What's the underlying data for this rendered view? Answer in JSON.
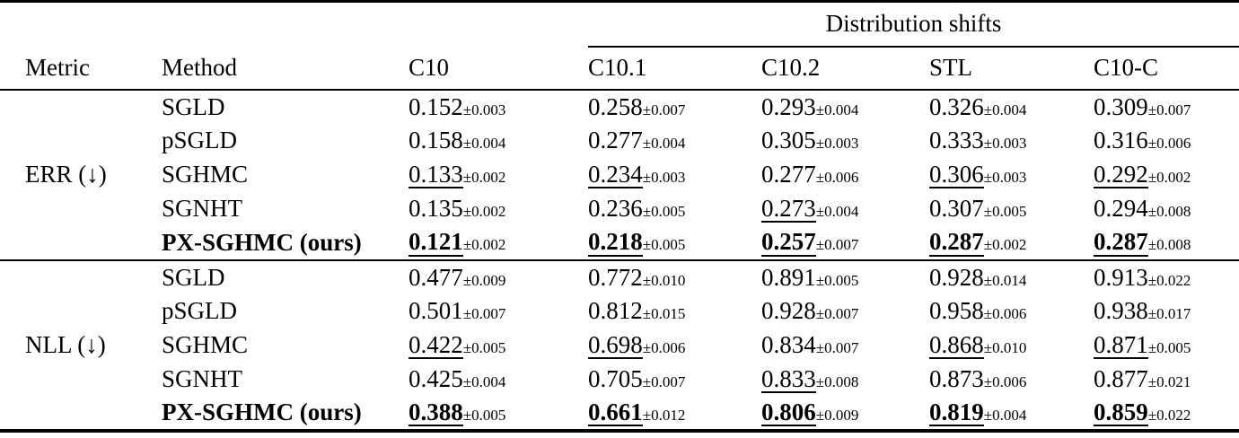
{
  "page": {
    "background_color": "#ffffff",
    "text_color": "#000000",
    "rule_color": "#000000"
  },
  "table": {
    "group_header": "Distribution shifts",
    "columns": [
      "Metric",
      "Method",
      "C10",
      "C10.1",
      "C10.2",
      "STL",
      "C10-C"
    ],
    "blocks": [
      {
        "metric": "ERR (↓)",
        "rows": [
          {
            "method": "SGLD",
            "bold": false,
            "cells": [
              {
                "v": "0.152",
                "pm": "±0.003",
                "b": false,
                "u": false
              },
              {
                "v": "0.258",
                "pm": "±0.007",
                "b": false,
                "u": false
              },
              {
                "v": "0.293",
                "pm": "±0.004",
                "b": false,
                "u": false
              },
              {
                "v": "0.326",
                "pm": "±0.004",
                "b": false,
                "u": false
              },
              {
                "v": "0.309",
                "pm": "±0.007",
                "b": false,
                "u": false
              }
            ]
          },
          {
            "method": "pSGLD",
            "bold": false,
            "cells": [
              {
                "v": "0.158",
                "pm": "±0.004",
                "b": false,
                "u": false
              },
              {
                "v": "0.277",
                "pm": "±0.004",
                "b": false,
                "u": false
              },
              {
                "v": "0.305",
                "pm": "±0.003",
                "b": false,
                "u": false
              },
              {
                "v": "0.333",
                "pm": "±0.003",
                "b": false,
                "u": false
              },
              {
                "v": "0.316",
                "pm": "±0.006",
                "b": false,
                "u": false
              }
            ]
          },
          {
            "method": "SGHMC",
            "bold": false,
            "cells": [
              {
                "v": "0.133",
                "pm": "±0.002",
                "b": false,
                "u": true
              },
              {
                "v": "0.234",
                "pm": "±0.003",
                "b": false,
                "u": true
              },
              {
                "v": "0.277",
                "pm": "±0.006",
                "b": false,
                "u": false
              },
              {
                "v": "0.306",
                "pm": "±0.003",
                "b": false,
                "u": true
              },
              {
                "v": "0.292",
                "pm": "±0.002",
                "b": false,
                "u": true
              }
            ]
          },
          {
            "method": "SGNHT",
            "bold": false,
            "cells": [
              {
                "v": "0.135",
                "pm": "±0.002",
                "b": false,
                "u": false
              },
              {
                "v": "0.236",
                "pm": "±0.005",
                "b": false,
                "u": false
              },
              {
                "v": "0.273",
                "pm": "±0.004",
                "b": false,
                "u": true
              },
              {
                "v": "0.307",
                "pm": "±0.005",
                "b": false,
                "u": false
              },
              {
                "v": "0.294",
                "pm": "±0.008",
                "b": false,
                "u": false
              }
            ]
          },
          {
            "method": "PX-SGHMC (ours)",
            "bold": true,
            "cells": [
              {
                "v": "0.121",
                "pm": "±0.002",
                "b": true,
                "u": true
              },
              {
                "v": "0.218",
                "pm": "±0.005",
                "b": true,
                "u": true
              },
              {
                "v": "0.257",
                "pm": "±0.007",
                "b": true,
                "u": true
              },
              {
                "v": "0.287",
                "pm": "±0.002",
                "b": true,
                "u": true
              },
              {
                "v": "0.287",
                "pm": "±0.008",
                "b": true,
                "u": true
              }
            ]
          }
        ]
      },
      {
        "metric": "NLL (↓)",
        "rows": [
          {
            "method": "SGLD",
            "bold": false,
            "cells": [
              {
                "v": "0.477",
                "pm": "±0.009",
                "b": false,
                "u": false
              },
              {
                "v": "0.772",
                "pm": "±0.010",
                "b": false,
                "u": false
              },
              {
                "v": "0.891",
                "pm": "±0.005",
                "b": false,
                "u": false
              },
              {
                "v": "0.928",
                "pm": "±0.014",
                "b": false,
                "u": false
              },
              {
                "v": "0.913",
                "pm": "±0.022",
                "b": false,
                "u": false
              }
            ]
          },
          {
            "method": "pSGLD",
            "bold": false,
            "cells": [
              {
                "v": "0.501",
                "pm": "±0.007",
                "b": false,
                "u": false
              },
              {
                "v": "0.812",
                "pm": "±0.015",
                "b": false,
                "u": false
              },
              {
                "v": "0.928",
                "pm": "±0.007",
                "b": false,
                "u": false
              },
              {
                "v": "0.958",
                "pm": "±0.006",
                "b": false,
                "u": false
              },
              {
                "v": "0.938",
                "pm": "±0.017",
                "b": false,
                "u": false
              }
            ]
          },
          {
            "method": "SGHMC",
            "bold": false,
            "cells": [
              {
                "v": "0.422",
                "pm": "±0.005",
                "b": false,
                "u": true
              },
              {
                "v": "0.698",
                "pm": "±0.006",
                "b": false,
                "u": true
              },
              {
                "v": "0.834",
                "pm": "±0.007",
                "b": false,
                "u": false
              },
              {
                "v": "0.868",
                "pm": "±0.010",
                "b": false,
                "u": true
              },
              {
                "v": "0.871",
                "pm": "±0.005",
                "b": false,
                "u": true
              }
            ]
          },
          {
            "method": "SGNHT",
            "bold": false,
            "cells": [
              {
                "v": "0.425",
                "pm": "±0.004",
                "b": false,
                "u": false
              },
              {
                "v": "0.705",
                "pm": "±0.007",
                "b": false,
                "u": false
              },
              {
                "v": "0.833",
                "pm": "±0.008",
                "b": false,
                "u": true
              },
              {
                "v": "0.873",
                "pm": "±0.006",
                "b": false,
                "u": false
              },
              {
                "v": "0.877",
                "pm": "±0.021",
                "b": false,
                "u": false
              }
            ]
          },
          {
            "method": "PX-SGHMC (ours)",
            "bold": true,
            "cells": [
              {
                "v": "0.388",
                "pm": "±0.005",
                "b": true,
                "u": true
              },
              {
                "v": "0.661",
                "pm": "±0.012",
                "b": true,
                "u": true
              },
              {
                "v": "0.806",
                "pm": "±0.009",
                "b": true,
                "u": true
              },
              {
                "v": "0.819",
                "pm": "±0.004",
                "b": true,
                "u": true
              },
              {
                "v": "0.859",
                "pm": "±0.022",
                "b": true,
                "u": true
              }
            ]
          }
        ]
      }
    ]
  }
}
